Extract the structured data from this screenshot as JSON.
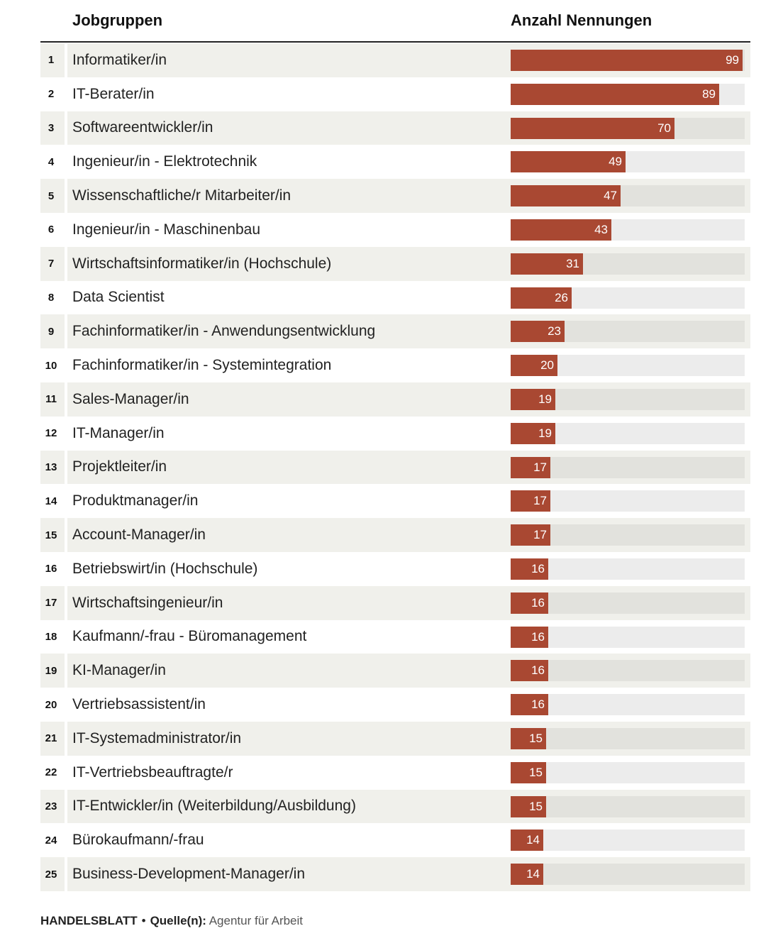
{
  "header": {
    "col_label": "Jobgruppen",
    "col_value": "Anzahl Nennungen"
  },
  "footer": {
    "brand": "HANDELSBLATT",
    "separator": "•",
    "source_label": "Quelle(n):",
    "source": "Agentur für Arbeit"
  },
  "colors": {
    "bar": "#a94832",
    "track": "#ececec",
    "row_shade": "#f0f0eb"
  },
  "chart_data": {
    "type": "bar",
    "orientation": "horizontal",
    "xlabel": "Anzahl Nennungen",
    "xlim": [
      0,
      100
    ],
    "grid": false,
    "ranks": [
      "1",
      "2",
      "3",
      "4",
      "5",
      "6",
      "7",
      "8",
      "9",
      "10",
      "11",
      "12",
      "13",
      "14",
      "15",
      "16",
      "17",
      "18",
      "19",
      "20",
      "21",
      "22",
      "23",
      "24",
      "25"
    ],
    "categories": [
      "Informatiker/in",
      "IT-Berater/in",
      "Softwareentwickler/in",
      "Ingenieur/in - Elektrotechnik",
      "Wissenschaftliche/r Mitarbeiter/in",
      "Ingenieur/in - Maschinenbau",
      "Wirtschaftsinformatiker/in (Hochschule)",
      "Data Scientist",
      "Fachinformatiker/in - Anwendungsentwicklung",
      "Fachinformatiker/in - Systemintegration",
      "Sales-Manager/in",
      "IT-Manager/in",
      "Projektleiter/in",
      "Produktmanager/in",
      "Account-Manager/in",
      "Betriebswirt/in (Hochschule)",
      "Wirtschaftsingenieur/in",
      "Kaufmann/-frau - Büromanagement",
      "KI-Manager/in",
      "Vertriebsassistent/in",
      "IT-Systemadministrator/in",
      "IT-Vertriebsbeauftragte/r",
      "IT-Entwickler/in (Weiterbildung/Ausbildung)",
      "Bürokaufmann/-frau",
      "Business-Development-Manager/in"
    ],
    "values": [
      99,
      89,
      70,
      49,
      47,
      43,
      31,
      26,
      23,
      20,
      19,
      19,
      17,
      17,
      17,
      16,
      16,
      16,
      16,
      16,
      15,
      15,
      15,
      14,
      14
    ]
  }
}
